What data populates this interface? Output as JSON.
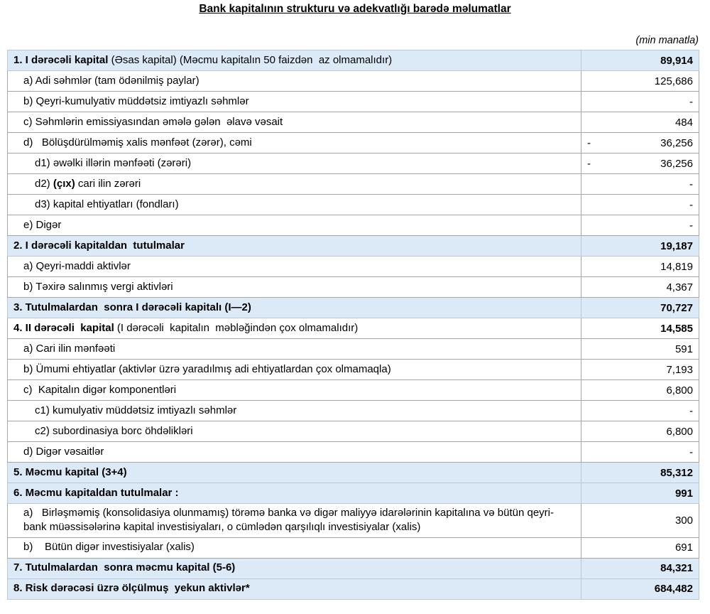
{
  "title": "Bank kapitalının strukturu və adekvatlığı barədə məlumatlar",
  "unit_label": "(min manatla)",
  "colors": {
    "section_row_bg": "#dce9f6",
    "border": "#a6a6a6",
    "text": "#000000"
  },
  "rows": [
    {
      "pre": "",
      "bold": "1. I dərəcəli kapital ",
      "rest": "(Əsas kapital) (Məcmu kapitalın 50 faizdən  az olmamalıdır)",
      "neg": "",
      "value": "89,914"
    },
    {
      "pre": "a) Adi səhmlər (tam ödənilmiş paylar)",
      "bold": "",
      "rest": "",
      "neg": "",
      "value": "125,686"
    },
    {
      "pre": "b) Qeyri-kumulyativ müddətsiz imtiyazlı səhmlər",
      "bold": "",
      "rest": "",
      "neg": "",
      "value": "-"
    },
    {
      "pre": "c) Səhmlərin emissiyasından əmələ gələn  əlavə vəsait",
      "bold": "",
      "rest": "",
      "neg": "",
      "value": "484"
    },
    {
      "pre": "d)   Bölüşdürülməmiş xalis mənfəət (zərər), cəmi",
      "bold": "",
      "rest": "",
      "neg": "-",
      "value": "36,256"
    },
    {
      "pre": "d1) əwəlki illərin mənfəəti (zərəri)",
      "bold": "",
      "rest": "",
      "neg": "-",
      "value": "36,256"
    },
    {
      "pre": "d2) ",
      "bold": "(çıx)",
      "rest": " cari ilin zərəri",
      "neg": "",
      "value": "-"
    },
    {
      "pre": "d3) kapital ehtiyatları (fondları)",
      "bold": "",
      "rest": "",
      "neg": "",
      "value": "-"
    },
    {
      "pre": "e) Digər",
      "bold": "",
      "rest": "",
      "neg": "",
      "value": "-"
    },
    {
      "pre": "",
      "bold": "2. I dərəcəli kapitaldan  tutulmalar",
      "rest": "",
      "neg": "",
      "value": "19,187"
    },
    {
      "pre": "a) Qeyri-maddi aktivlər",
      "bold": "",
      "rest": "",
      "neg": "",
      "value": "14,819"
    },
    {
      "pre": "b) Təxirə salınmış vergi aktivləri",
      "bold": "",
      "rest": "",
      "neg": "",
      "value": "4,367"
    },
    {
      "pre": "",
      "bold": "3. Tutulmalardan  sonra I dərəcəli kapitalı (I—2)",
      "rest": "",
      "neg": "",
      "value": "70,727"
    },
    {
      "pre": "",
      "bold": "4. II dərəcəli  kapital ",
      "rest": "(I dərəcəli  kapitalın  məbləğindən çox olmamalıdır)",
      "neg": "",
      "value": "14,585"
    },
    {
      "pre": "a) Cari ilin mənfəəti",
      "bold": "",
      "rest": "",
      "neg": "",
      "value": "591"
    },
    {
      "pre": "b) Ümumi ehtiyatlar (aktivlər üzrə yaradılmış adi ehtiyatlardan çox olmamaqla)",
      "bold": "",
      "rest": "",
      "neg": "",
      "value": "7,193"
    },
    {
      "pre": "c)  Kapitalın digər komponentləri",
      "bold": "",
      "rest": "",
      "neg": "",
      "value": "6,800"
    },
    {
      "pre": "c1) kumulyativ müddətsiz imtiyazlı səhmlər",
      "bold": "",
      "rest": "",
      "neg": "",
      "value": "-"
    },
    {
      "pre": "c2) subordinasiya borc öhdəlikləri",
      "bold": "",
      "rest": "",
      "neg": "",
      "value": "6,800"
    },
    {
      "pre": "d) Digər vəsaitlər",
      "bold": "",
      "rest": "",
      "neg": "",
      "value": "-"
    },
    {
      "pre": "",
      "bold": "5. Məcmu kapital (3+4)",
      "rest": "",
      "neg": "",
      "value": "85,312"
    },
    {
      "pre": "",
      "bold": "6. Məcmu kapitaldan tutulmalar :",
      "rest": "",
      "neg": "",
      "value": "991"
    },
    {
      "pre": "a)   Birləşməmiş (konsolidasiya olunmamış) törəmə banka və digər maliyyə idarələrinin kapitalına və bütün qeyri-bank müəssisələrinə kapital investisiyaları, o cümlədən qarşılıqlı investisiyalar (xalis)",
      "bold": "",
      "rest": "",
      "neg": "",
      "value": "300"
    },
    {
      "pre": "b)    Bütün digər investisiyalar (xalis)",
      "bold": "",
      "rest": "",
      "neg": "",
      "value": "691"
    },
    {
      "pre": "",
      "bold": "7. Tutulmalardan  sonra məcmu kapital (5-6)",
      "rest": "",
      "neg": "",
      "value": "84,321"
    },
    {
      "pre": "",
      "bold": "8. Risk dərəcəsi üzrə ölçülmuş  yekun aktivlər*",
      "rest": "",
      "neg": "",
      "value": "684,482"
    }
  ]
}
